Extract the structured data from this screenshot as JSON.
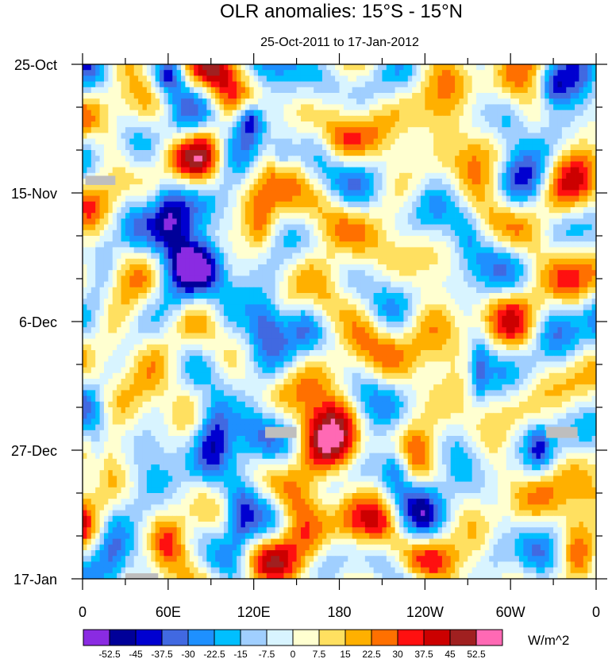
{
  "chart_data": {
    "type": "heatmap",
    "title": "OLR anomalies: 15°S - 15°N",
    "subtitle": "25-Oct-2011 to 17-Jan-2012",
    "xlabel": "",
    "ylabel": "",
    "x_ticks": [
      "0",
      "60E",
      "120E",
      "180",
      "120W",
      "60W",
      "0"
    ],
    "x_tick_values": [
      0,
      60,
      120,
      180,
      240,
      300,
      360
    ],
    "xlim": [
      0,
      360
    ],
    "y_ticks": [
      "25-Oct",
      "15-Nov",
      "6-Dec",
      "27-Dec",
      "17-Jan"
    ],
    "y_tick_values": [
      0,
      21,
      42,
      63,
      84
    ],
    "ylim": [
      0,
      84
    ],
    "colorbar": {
      "levels": [
        "-52.5",
        "-45",
        "-37.5",
        "-30",
        "-22.5",
        "-15",
        "-7.5",
        "0",
        "7.5",
        "15",
        "22.5",
        "30",
        "37.5",
        "45",
        "52.5"
      ],
      "colors": [
        "#8a2be2",
        "#000099",
        "#0000d0",
        "#4169e1",
        "#1e90ff",
        "#00bfff",
        "#a0cfff",
        "#d8f4ff",
        "#ffffd0",
        "#ffe060",
        "#ffb000",
        "#ff7000",
        "#ff1010",
        "#cc0000",
        "#a02020",
        "#ff69b4"
      ],
      "units": "W/m^2"
    },
    "grid": false,
    "missing_color": "#bebebe",
    "features": [
      {
        "lon": 60,
        "day": 2,
        "value": -40,
        "rx": 10,
        "ry": 3
      },
      {
        "lon": 70,
        "day": 12,
        "value": -20,
        "rx": 14,
        "ry": 4
      },
      {
        "lon": 117,
        "day": 9,
        "value": -48,
        "rx": 9,
        "ry": 3
      },
      {
        "lon": 70,
        "day": 29,
        "value": -48,
        "rx": 17,
        "ry": 7
      },
      {
        "lon": 85,
        "day": 33,
        "value": -40,
        "rx": 14,
        "ry": 4
      },
      {
        "lon": 60,
        "day": 24,
        "value": -30,
        "rx": 12,
        "ry": 6
      },
      {
        "lon": 128,
        "day": 42,
        "value": -45,
        "rx": 14,
        "ry": 5
      },
      {
        "lon": 100,
        "day": 40,
        "value": -25,
        "rx": 16,
        "ry": 6
      },
      {
        "lon": 92,
        "day": 60,
        "value": -48,
        "rx": 13,
        "ry": 6
      },
      {
        "lon": 120,
        "day": 62,
        "value": -30,
        "rx": 18,
        "ry": 6
      },
      {
        "lon": 110,
        "day": 74,
        "value": -25,
        "rx": 10,
        "ry": 6
      },
      {
        "lon": 220,
        "day": 66,
        "value": -40,
        "rx": 10,
        "ry": 4
      },
      {
        "lon": 278,
        "day": 50,
        "value": -30,
        "rx": 6,
        "ry": 5
      },
      {
        "lon": 320,
        "day": 63,
        "value": -25,
        "rx": 8,
        "ry": 4
      },
      {
        "lon": 300,
        "day": 10,
        "value": -20,
        "rx": 12,
        "ry": 4
      },
      {
        "lon": 330,
        "day": 4,
        "value": -22,
        "rx": 8,
        "ry": 3
      },
      {
        "lon": 270,
        "day": 28,
        "value": -18,
        "rx": 10,
        "ry": 5
      },
      {
        "lon": 10,
        "day": 63,
        "value": -20,
        "rx": 8,
        "ry": 6
      },
      {
        "lon": 15,
        "day": 31,
        "value": -15,
        "rx": 8,
        "ry": 5
      },
      {
        "lon": 20,
        "day": 80,
        "value": -20,
        "rx": 10,
        "ry": 4
      },
      {
        "lon": 140,
        "day": 15,
        "value": -25,
        "rx": 8,
        "ry": 3
      },
      {
        "lon": 290,
        "day": 80,
        "value": -20,
        "rx": 10,
        "ry": 4
      },
      {
        "lon": 180,
        "day": 56,
        "value": 38,
        "rx": 18,
        "ry": 7
      },
      {
        "lon": 160,
        "day": 62,
        "value": 30,
        "rx": 18,
        "ry": 6
      },
      {
        "lon": 160,
        "day": 80,
        "value": 35,
        "rx": 18,
        "ry": 6
      },
      {
        "lon": 185,
        "day": 73,
        "value": 20,
        "rx": 14,
        "ry": 5
      },
      {
        "lon": 88,
        "day": 18,
        "value": 30,
        "rx": 17,
        "ry": 7
      },
      {
        "lon": 180,
        "day": 12,
        "value": 20,
        "rx": 14,
        "ry": 5
      },
      {
        "lon": 185,
        "day": 5,
        "value": 15,
        "rx": 14,
        "ry": 4
      },
      {
        "lon": 125,
        "day": 27,
        "value": 20,
        "rx": 10,
        "ry": 5
      },
      {
        "lon": 170,
        "day": 40,
        "value": 22,
        "rx": 12,
        "ry": 4
      },
      {
        "lon": 20,
        "day": 44,
        "value": 20,
        "rx": 14,
        "ry": 6
      },
      {
        "lon": 20,
        "day": 12,
        "value": 15,
        "rx": 14,
        "ry": 6
      },
      {
        "lon": 255,
        "day": 10,
        "value": 12,
        "rx": 24,
        "ry": 10
      },
      {
        "lon": 235,
        "day": 38,
        "value": 10,
        "rx": 18,
        "ry": 10
      },
      {
        "lon": 345,
        "day": 40,
        "value": 15,
        "rx": 12,
        "ry": 10
      },
      {
        "lon": 250,
        "day": 72,
        "value": 15,
        "rx": 14,
        "ry": 6
      },
      {
        "lon": 345,
        "day": 78,
        "value": 15,
        "rx": 10,
        "ry": 6
      },
      {
        "lon": 60,
        "day": 78,
        "value": 25,
        "rx": 12,
        "ry": 5
      },
      {
        "lon": 300,
        "day": 45,
        "value": 12,
        "rx": 12,
        "ry": 5
      }
    ],
    "missing_blocks": [
      {
        "lon0": 2,
        "lon1": 23,
        "day0": 18.2,
        "day1": 19.7
      },
      {
        "lon0": 128,
        "lon1": 150,
        "day0": 59.2,
        "day1": 61.0
      },
      {
        "lon0": 325,
        "lon1": 347,
        "day0": 59.2,
        "day1": 61.0
      },
      {
        "lon0": 30,
        "lon1": 53,
        "day0": 83.1,
        "day1": 84
      }
    ]
  }
}
